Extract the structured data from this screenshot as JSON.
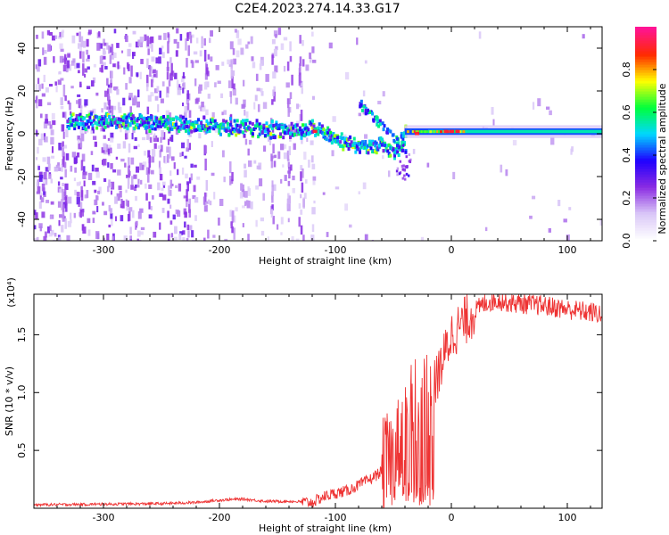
{
  "title": "C2E4.2023.274.14.33.G17",
  "chart_data": [
    {
      "type": "heatmap",
      "title": "C2E4.2023.274.14.33.G17",
      "xlabel": "Height of straight line (km)",
      "ylabel": "Frequency (Hz)",
      "xlim": [
        -360,
        130
      ],
      "ylim": [
        -50,
        50
      ],
      "x_ticks": [
        -300,
        -200,
        -100,
        0,
        100
      ],
      "y_ticks": [
        -40,
        -20,
        0,
        20,
        40
      ],
      "colorbar": {
        "label": "Normalized spectral amplitude",
        "range": [
          0.0,
          1.0
        ],
        "ticks": [
          0.0,
          0.2,
          0.4,
          0.6,
          0.8
        ],
        "colormap": [
          "#ffffff",
          "#d9c6f7",
          "#8a2be2",
          "#1f00ff",
          "#00d8ff",
          "#00ff3c",
          "#ffff00",
          "#ff2a00",
          "#ff1493"
        ]
      },
      "ridge": {
        "x": [
          -330,
          -300,
          -260,
          -220,
          -180,
          -140,
          -120,
          -100,
          -80,
          -60,
          -50,
          -40,
          -30,
          -20,
          0,
          50,
          100,
          130
        ],
        "y": [
          6,
          6,
          5,
          4,
          3,
          1,
          2,
          -2,
          -7,
          -4,
          -10,
          1,
          0,
          1,
          1,
          1,
          1,
          1
        ]
      }
    },
    {
      "type": "line",
      "xlabel": "Height of straight line (km)",
      "ylabel": "SNR (10 * v/v)",
      "yscale_label": "(x10⁴)",
      "xlim": [
        -360,
        130
      ],
      "ylim": [
        0,
        1.85
      ],
      "x_ticks": [
        -300,
        -200,
        -100,
        0,
        100
      ],
      "y_ticks": [
        0.5,
        1.0,
        1.5
      ],
      "series": [
        {
          "color": "#ee3333",
          "x": [
            -360,
            -300,
            -250,
            -220,
            -200,
            -180,
            -160,
            -140,
            -120,
            -110,
            -100,
            -90,
            -80,
            -70,
            -60,
            -50,
            -45,
            -40,
            -35,
            -30,
            -25,
            -20,
            -15,
            -10,
            -5,
            0,
            10,
            20,
            30,
            40,
            50,
            60,
            80,
            100,
            130
          ],
          "y": [
            0.03,
            0.035,
            0.04,
            0.05,
            0.07,
            0.08,
            0.06,
            0.06,
            0.05,
            0.1,
            0.13,
            0.15,
            0.2,
            0.25,
            0.32,
            0.45,
            0.55,
            0.75,
            1.1,
            0.9,
            0.95,
            1.0,
            1.05,
            1.2,
            1.35,
            1.5,
            1.6,
            1.7,
            1.78,
            1.8,
            1.78,
            1.77,
            1.75,
            1.72,
            1.68
          ]
        }
      ]
    }
  ]
}
